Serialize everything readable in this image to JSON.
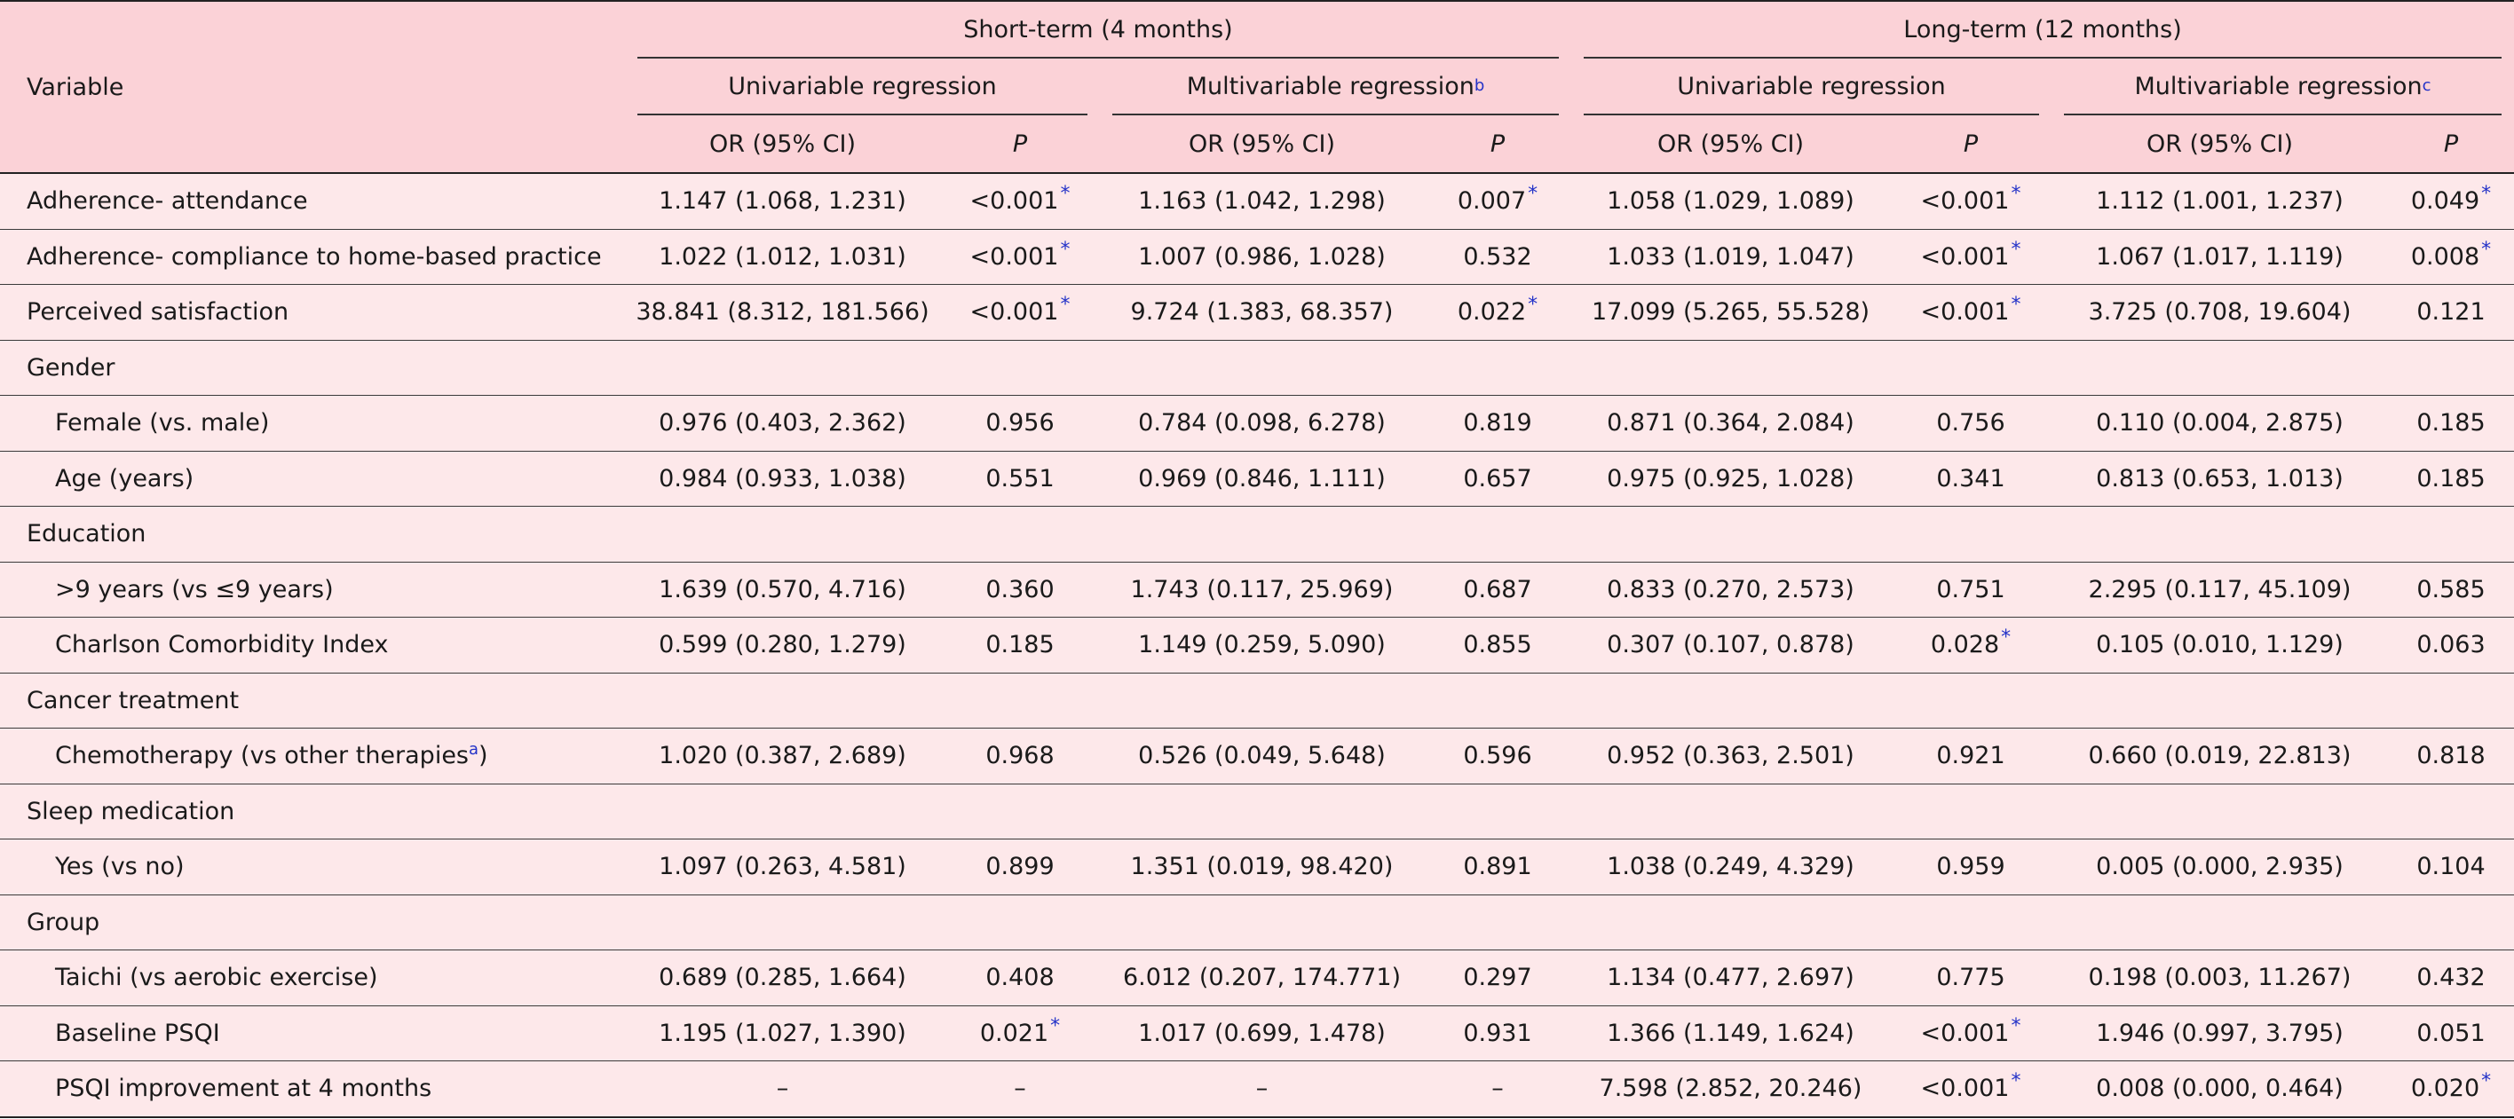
{
  "header": {
    "variable_label": "Variable",
    "short_term_label": "Short-term (4 months)",
    "long_term_label": "Long-term (12 months)",
    "univariable_label": "Univariable regression",
    "multivariable_label": "Multivariable regression",
    "multi_short_footnote": "b",
    "multi_long_footnote": "c",
    "or_label": "OR (95% CI)",
    "p_label": "P"
  },
  "rows": [
    {
      "label": "Adherence- attendance",
      "indent": false,
      "cells": [
        "1.147 (1.068, 1.231)",
        "<0.001",
        "1.163 (1.042, 1.298)",
        "0.007",
        "1.058 (1.029, 1.089)",
        "<0.001",
        "1.112 (1.001, 1.237)",
        "0.049"
      ],
      "sig": [
        false,
        true,
        false,
        true,
        false,
        true,
        false,
        true
      ]
    },
    {
      "label": "Adherence- compliance to home-based practice",
      "indent": false,
      "cells": [
        "1.022 (1.012, 1.031)",
        "<0.001",
        "1.007 (0.986, 1.028)",
        "0.532",
        "1.033 (1.019, 1.047)",
        "<0.001",
        "1.067 (1.017, 1.119)",
        "0.008"
      ],
      "sig": [
        false,
        true,
        false,
        false,
        false,
        true,
        false,
        true
      ]
    },
    {
      "label": "Perceived satisfaction",
      "indent": false,
      "cells": [
        "38.841 (8.312, 181.566)",
        "<0.001",
        "9.724 (1.383, 68.357)",
        "0.022",
        "17.099 (5.265, 55.528)",
        "<0.001",
        "3.725 (0.708, 19.604)",
        "0.121"
      ],
      "sig": [
        false,
        true,
        false,
        true,
        false,
        true,
        false,
        false
      ]
    },
    {
      "label": "Gender",
      "indent": false,
      "cells": [
        "",
        "",
        "",
        "",
        "",
        "",
        "",
        ""
      ],
      "sig": [
        false,
        false,
        false,
        false,
        false,
        false,
        false,
        false
      ]
    },
    {
      "label": "Female (vs. male)",
      "indent": true,
      "cells": [
        "0.976 (0.403, 2.362)",
        "0.956",
        "0.784 (0.098, 6.278)",
        "0.819",
        "0.871 (0.364, 2.084)",
        "0.756",
        "0.110 (0.004, 2.875)",
        "0.185"
      ],
      "sig": [
        false,
        false,
        false,
        false,
        false,
        false,
        false,
        false
      ]
    },
    {
      "label": "Age (years)",
      "indent": true,
      "cells": [
        "0.984 (0.933, 1.038)",
        "0.551",
        "0.969 (0.846, 1.111)",
        "0.657",
        "0.975 (0.925, 1.028)",
        "0.341",
        "0.813 (0.653, 1.013)",
        "0.185"
      ],
      "sig": [
        false,
        false,
        false,
        false,
        false,
        false,
        false,
        false
      ]
    },
    {
      "label": "Education",
      "indent": false,
      "cells": [
        "",
        "",
        "",
        "",
        "",
        "",
        "",
        ""
      ],
      "sig": [
        false,
        false,
        false,
        false,
        false,
        false,
        false,
        false
      ]
    },
    {
      "label": ">9 years (vs ≤9 years)",
      "indent": true,
      "cells": [
        "1.639 (0.570, 4.716)",
        "0.360",
        "1.743 (0.117, 25.969)",
        "0.687",
        "0.833 (0.270, 2.573)",
        "0.751",
        "2.295 (0.117, 45.109)",
        "0.585"
      ],
      "sig": [
        false,
        false,
        false,
        false,
        false,
        false,
        false,
        false
      ]
    },
    {
      "label": "Charlson Comorbidity Index",
      "indent": true,
      "cells": [
        "0.599 (0.280, 1.279)",
        "0.185",
        "1.149 (0.259, 5.090)",
        "0.855",
        "0.307 (0.107, 0.878)",
        "0.028",
        "0.105 (0.010, 1.129)",
        "0.063"
      ],
      "sig": [
        false,
        false,
        false,
        false,
        false,
        true,
        false,
        false
      ]
    },
    {
      "label": "Cancer treatment",
      "indent": false,
      "cells": [
        "",
        "",
        "",
        "",
        "",
        "",
        "",
        ""
      ],
      "sig": [
        false,
        false,
        false,
        false,
        false,
        false,
        false,
        false
      ]
    },
    {
      "label": "Chemotherapy (vs other therapies",
      "label_sup": "a",
      "label_tail": ")",
      "indent": true,
      "cells": [
        "1.020 (0.387, 2.689)",
        "0.968",
        "0.526 (0.049, 5.648)",
        "0.596",
        "0.952 (0.363, 2.501)",
        "0.921",
        "0.660 (0.019, 22.813)",
        "0.818"
      ],
      "sig": [
        false,
        false,
        false,
        false,
        false,
        false,
        false,
        false
      ]
    },
    {
      "label": "Sleep medication",
      "indent": false,
      "cells": [
        "",
        "",
        "",
        "",
        "",
        "",
        "",
        ""
      ],
      "sig": [
        false,
        false,
        false,
        false,
        false,
        false,
        false,
        false
      ]
    },
    {
      "label": "Yes (vs no)",
      "indent": true,
      "cells": [
        "1.097 (0.263, 4.581)",
        "0.899",
        "1.351 (0.019, 98.420)",
        "0.891",
        "1.038 (0.249, 4.329)",
        "0.959",
        "0.005 (0.000, 2.935)",
        "0.104"
      ],
      "sig": [
        false,
        false,
        false,
        false,
        false,
        false,
        false,
        false
      ]
    },
    {
      "label": "Group",
      "indent": false,
      "cells": [
        "",
        "",
        "",
        "",
        "",
        "",
        "",
        ""
      ],
      "sig": [
        false,
        false,
        false,
        false,
        false,
        false,
        false,
        false
      ]
    },
    {
      "label": "Taichi (vs aerobic exercise)",
      "indent": true,
      "cells": [
        "0.689 (0.285, 1.664)",
        "0.408",
        "6.012 (0.207, 174.771)",
        "0.297",
        "1.134 (0.477, 2.697)",
        "0.775",
        "0.198 (0.003, 11.267)",
        "0.432"
      ],
      "sig": [
        false,
        false,
        false,
        false,
        false,
        false,
        false,
        false
      ]
    },
    {
      "label": "Baseline PSQI",
      "indent": true,
      "cells": [
        "1.195 (1.027, 1.390)",
        "0.021",
        "1.017 (0.699, 1.478)",
        "0.931",
        "1.366 (1.149, 1.624)",
        "<0.001",
        "1.946 (0.997, 3.795)",
        "0.051"
      ],
      "sig": [
        false,
        true,
        false,
        false,
        false,
        true,
        false,
        false
      ]
    },
    {
      "label": "PSQI improvement at 4 months",
      "indent": true,
      "cells": [
        "–",
        "–",
        "–",
        "–",
        "7.598 (2.852, 20.246)",
        "<0.001",
        "0.008 (0.000, 0.464)",
        "0.020"
      ],
      "sig": [
        false,
        false,
        false,
        false,
        false,
        true,
        false,
        true
      ]
    }
  ],
  "significance_marker": "*",
  "colors": {
    "header_bg": "#fbd2d7",
    "row_bg": "#fde8ea",
    "footnote_color": "#2332c8"
  }
}
